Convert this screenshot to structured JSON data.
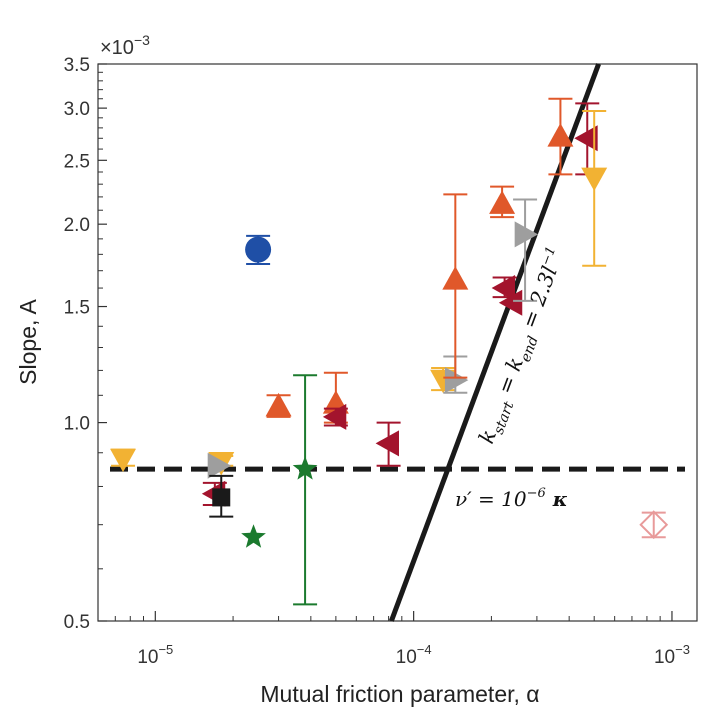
{
  "chart_data": {
    "type": "scatter",
    "xlabel": "Mutual friction parameter, α",
    "ylabel": "Slope, A",
    "y_multiplier_label": "×10",
    "y_multiplier_exp": "−3",
    "xscale": "log",
    "yscale": "log",
    "xlim": [
      6e-06,
      0.00125
    ],
    "ylim": [
      0.5,
      3.5
    ],
    "x_ticks": [
      {
        "value": 1e-05,
        "base": "10",
        "exp": "−5"
      },
      {
        "value": 0.0001,
        "base": "10",
        "exp": "−4"
      },
      {
        "value": 0.001,
        "base": "10",
        "exp": "−3"
      }
    ],
    "y_ticks": [
      {
        "value": 0.5,
        "label": "0.5"
      },
      {
        "value": 1.0,
        "label": "1.0"
      },
      {
        "value": 1.5,
        "label": "1.5"
      },
      {
        "value": 2.0,
        "label": "2.0"
      },
      {
        "value": 2.5,
        "label": "2.5"
      },
      {
        "value": 3.0,
        "label": "3.0"
      },
      {
        "value": 3.5,
        "label": "3.5"
      }
    ],
    "points": [
      {
        "x": 7.5e-06,
        "y": 0.88,
        "marker": "tri-down",
        "color": "#f2b233",
        "err": [
          0.86,
          0.91
        ]
      },
      {
        "x": 1.8e-05,
        "y": 0.87,
        "marker": "tri-down",
        "color": "#f2b233",
        "err": [
          0.86,
          0.89
        ]
      },
      {
        "x": 1.75e-05,
        "y": 0.86,
        "marker": "tri-right",
        "color": "#9e9e9e",
        "err": null
      },
      {
        "x": 1.7e-05,
        "y": 0.78,
        "marker": "tri-left",
        "color": "#a3142d",
        "err": [
          0.75,
          0.81
        ]
      },
      {
        "x": 1.8e-05,
        "y": 0.77,
        "marker": "square",
        "color": "#1a1a1a",
        "err": [
          0.72,
          0.83
        ]
      },
      {
        "x": 2.4e-05,
        "y": 0.67,
        "marker": "star",
        "color": "#1b7a2e",
        "err": null
      },
      {
        "x": 2.5e-05,
        "y": 1.83,
        "marker": "circle",
        "color": "#1f4fa6",
        "err": [
          1.74,
          1.92
        ]
      },
      {
        "x": 3e-05,
        "y": 1.06,
        "marker": "tri-up",
        "color": "#e0582a",
        "err": [
          1.02,
          1.1
        ]
      },
      {
        "x": 3.8e-05,
        "y": 0.85,
        "marker": "star",
        "color": "#1b7a2e",
        "err": [
          0.53,
          1.18
        ]
      },
      {
        "x": 5e-05,
        "y": 1.07,
        "marker": "tri-up",
        "color": "#e0582a",
        "err": [
          1.0,
          1.19
        ]
      },
      {
        "x": 5e-05,
        "y": 1.02,
        "marker": "tri-left",
        "color": "#a3142d",
        "err": [
          0.99,
          1.05
        ]
      },
      {
        "x": 8e-05,
        "y": 0.93,
        "marker": "tri-left",
        "color": "#a3142d",
        "err": [
          0.86,
          1.0
        ]
      },
      {
        "x": 0.00013,
        "y": 1.16,
        "marker": "tri-down",
        "color": "#f2b233",
        "err": [
          1.12,
          1.21
        ]
      },
      {
        "x": 0.000145,
        "y": 1.16,
        "marker": "tri-right",
        "color": "#9e9e9e",
        "err": [
          1.11,
          1.26
        ]
      },
      {
        "x": 0.000145,
        "y": 1.65,
        "marker": "tri-up",
        "color": "#e0582a",
        "err": [
          1.17,
          2.22
        ]
      },
      {
        "x": 0.00022,
        "y": 2.15,
        "marker": "tri-up",
        "color": "#e0582a",
        "err": [
          2.05,
          2.28
        ]
      },
      {
        "x": 0.000225,
        "y": 1.6,
        "marker": "tri-left",
        "color": "#a3142d",
        "err": [
          1.55,
          1.66
        ]
      },
      {
        "x": 0.00024,
        "y": 1.52,
        "marker": "tri-left",
        "color": "#a3142d",
        "err": null
      },
      {
        "x": 0.00027,
        "y": 1.93,
        "marker": "tri-right",
        "color": "#9e9e9e",
        "err": [
          1.53,
          2.18
        ]
      },
      {
        "x": 0.00037,
        "y": 2.72,
        "marker": "tri-up",
        "color": "#e0582a",
        "err": [
          2.38,
          3.1
        ]
      },
      {
        "x": 0.00047,
        "y": 2.7,
        "marker": "tri-left",
        "color": "#a3142d",
        "err": [
          2.38,
          3.05
        ]
      },
      {
        "x": 0.0005,
        "y": 2.35,
        "marker": "tri-down",
        "color": "#f2b233",
        "err": [
          1.73,
          2.97
        ]
      },
      {
        "x": 0.00085,
        "y": 0.7,
        "marker": "diamond-open",
        "color": "#e89a9a",
        "err": [
          0.67,
          0.73
        ]
      }
    ],
    "hline": {
      "y": 0.85,
      "style": "dashed",
      "color": "#1a1a1a",
      "label": "ν′ = 10",
      "label_exp": "−6",
      "label_suffix": " κ"
    },
    "fit_line": {
      "x1": 8.2e-05,
      "y1": 0.5,
      "x2": 0.00052,
      "y2": 3.5,
      "color": "#1a1a1a",
      "label": "k",
      "sub1": "start",
      "mid": " = k",
      "sub2": "end",
      "tail": " = 2.3l",
      "tail_exp": "−1"
    }
  }
}
